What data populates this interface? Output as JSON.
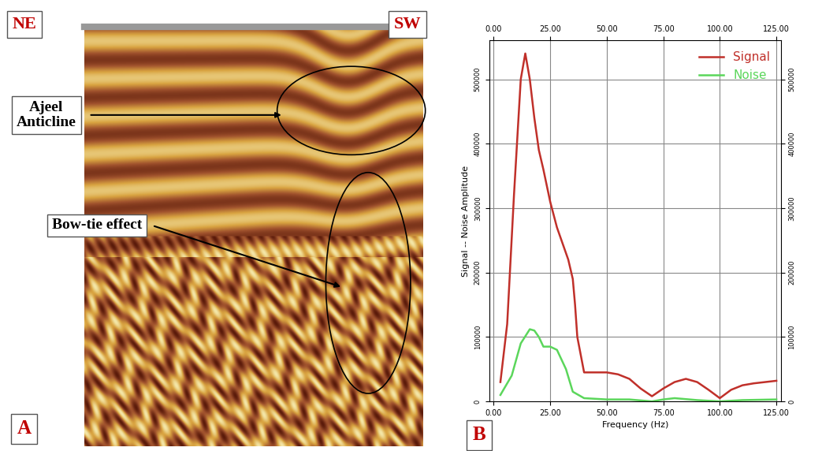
{
  "panel_a": {
    "label": "A",
    "left_label": "NE",
    "right_label": "SW",
    "annotations": [
      "Ajeel Anticline",
      "Bow-tie effect"
    ]
  },
  "chart_data": {
    "type": "line",
    "label": "B",
    "x_label": "Frequency (Hz)",
    "y_label": "Signal -- Noise Amplitude",
    "xlim": [
      -2,
      127
    ],
    "ylim": [
      0,
      560000
    ],
    "xticks": [
      {
        "value": 0,
        "label": "0.00"
      },
      {
        "value": 25,
        "label": "25.00"
      },
      {
        "value": 50,
        "label": "50.00"
      },
      {
        "value": 75,
        "label": "75.00"
      },
      {
        "value": 100,
        "label": "100.00"
      },
      {
        "value": 125,
        "label": "125.00"
      }
    ],
    "yticks": [
      0,
      100000,
      200000,
      300000,
      400000,
      500000
    ],
    "grid": true,
    "legend": "upper right",
    "series": [
      {
        "name": "Signal",
        "color": "#c0302a",
        "x": [
          3,
          6,
          9,
          12,
          14,
          16,
          18,
          20,
          22,
          25,
          28,
          30,
          33,
          35,
          36,
          37,
          40,
          45,
          50,
          55,
          60,
          65,
          70,
          75,
          80,
          85,
          90,
          95,
          100,
          105,
          110,
          115,
          120,
          125
        ],
        "values": [
          30000,
          120000,
          320000,
          500000,
          540000,
          500000,
          440000,
          390000,
          360000,
          310000,
          270000,
          250000,
          220000,
          190000,
          150000,
          100000,
          45000,
          45000,
          45000,
          42000,
          35000,
          20000,
          8000,
          20000,
          30000,
          35000,
          30000,
          18000,
          5000,
          18000,
          25000,
          28000,
          30000,
          32000
        ]
      },
      {
        "name": "Noise",
        "color": "#5bd65b",
        "x": [
          3,
          8,
          12,
          16,
          18,
          20,
          22,
          25,
          28,
          32,
          35,
          40,
          50,
          60,
          70,
          75,
          80,
          90,
          100,
          110,
          125
        ],
        "values": [
          10000,
          40000,
          90000,
          112000,
          110000,
          100000,
          85000,
          85000,
          80000,
          50000,
          15000,
          5000,
          3000,
          3000,
          0,
          3000,
          5000,
          2000,
          0,
          2000,
          3000
        ]
      }
    ]
  }
}
